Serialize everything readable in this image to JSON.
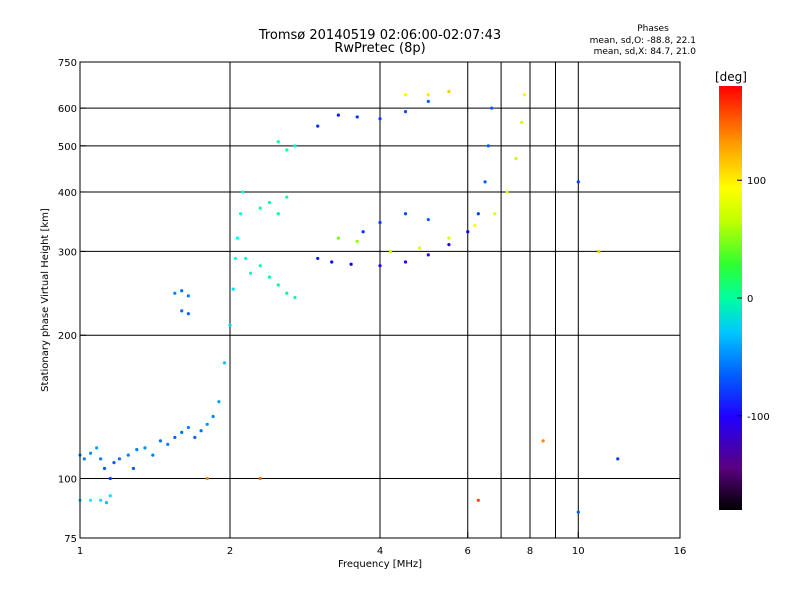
{
  "header": {
    "title_line1": "Tromsø 20140519 02:06:00-02:07:43",
    "title_line2": "RwPretec (8p)"
  },
  "stats": {
    "heading": "Phases",
    "line_o": "mean, sd,O: -88.8, 22.1",
    "line_x": "mean, sd,X: 84.7, 21.0"
  },
  "colorbar": {
    "title": "[deg]",
    "ticks": [
      100,
      0,
      -100
    ],
    "range": [
      -180,
      180
    ]
  },
  "chart_data": {
    "type": "scatter",
    "title": "Tromsø 20140519 02:06:00-02:07:43",
    "subtitle": "RwPretec (8p)",
    "xlabel": "Frequency [MHz]",
    "ylabel": "Stationary phase Virtual Height [km]",
    "xscale": "log",
    "yscale": "log",
    "xlim": [
      1,
      16
    ],
    "ylim": [
      75,
      750
    ],
    "xticks": [
      1,
      2,
      4,
      6,
      8,
      10,
      16
    ],
    "xtick_labels": [
      "1",
      "2",
      "4",
      "6",
      "8",
      "10",
      "16"
    ],
    "yticks": [
      75,
      100,
      200,
      300,
      400,
      500,
      600,
      750
    ],
    "ytick_labels": [
      "75",
      "100",
      "200",
      "300",
      "400",
      "500",
      "600",
      "750"
    ],
    "grid_x": [
      2,
      4,
      6,
      7,
      8,
      9,
      10
    ],
    "grid_y": [
      100,
      200,
      300,
      400,
      500,
      600
    ],
    "color_scale": "phase in degrees, rainbow from -180 (black/purple) to +180 (red)",
    "series": [
      {
        "points": [
          {
            "x": 1.0,
            "y": 90,
            "c": -60
          },
          {
            "x": 1.05,
            "y": 90,
            "c": -55
          },
          {
            "x": 1.1,
            "y": 90,
            "c": -60
          },
          {
            "x": 1.13,
            "y": 89,
            "c": -70
          },
          {
            "x": 1.15,
            "y": 92,
            "c": -60
          },
          {
            "x": 1.0,
            "y": 112,
            "c": -85
          },
          {
            "x": 1.02,
            "y": 110,
            "c": -90
          },
          {
            "x": 1.05,
            "y": 113,
            "c": -85
          },
          {
            "x": 1.08,
            "y": 116,
            "c": -80
          },
          {
            "x": 1.1,
            "y": 110,
            "c": -90
          },
          {
            "x": 1.12,
            "y": 105,
            "c": -100
          },
          {
            "x": 1.15,
            "y": 100,
            "c": -110
          },
          {
            "x": 1.17,
            "y": 108,
            "c": -100
          },
          {
            "x": 1.2,
            "y": 110,
            "c": -95
          },
          {
            "x": 1.25,
            "y": 112,
            "c": -90
          },
          {
            "x": 1.28,
            "y": 105,
            "c": -100
          },
          {
            "x": 1.3,
            "y": 115,
            "c": -90
          },
          {
            "x": 1.35,
            "y": 116,
            "c": -85
          },
          {
            "x": 1.4,
            "y": 112,
            "c": -90
          },
          {
            "x": 1.45,
            "y": 120,
            "c": -95
          },
          {
            "x": 1.5,
            "y": 118,
            "c": -90
          },
          {
            "x": 1.55,
            "y": 122,
            "c": -100
          },
          {
            "x": 1.6,
            "y": 125,
            "c": -95
          },
          {
            "x": 1.65,
            "y": 128,
            "c": -90
          },
          {
            "x": 1.7,
            "y": 122,
            "c": -100
          },
          {
            "x": 1.75,
            "y": 126,
            "c": -95
          },
          {
            "x": 1.8,
            "y": 130,
            "c": -85
          },
          {
            "x": 1.85,
            "y": 135,
            "c": -90
          },
          {
            "x": 1.9,
            "y": 145,
            "c": -80
          },
          {
            "x": 1.95,
            "y": 175,
            "c": -70
          },
          {
            "x": 2.0,
            "y": 210,
            "c": -65
          },
          {
            "x": 2.03,
            "y": 250,
            "c": -60
          },
          {
            "x": 2.05,
            "y": 290,
            "c": -50
          },
          {
            "x": 2.07,
            "y": 320,
            "c": -45
          },
          {
            "x": 2.1,
            "y": 360,
            "c": -40
          },
          {
            "x": 2.12,
            "y": 400,
            "c": -35
          },
          {
            "x": 2.15,
            "y": 290,
            "c": -40
          },
          {
            "x": 2.2,
            "y": 270,
            "c": -35
          },
          {
            "x": 2.3,
            "y": 280,
            "c": -30
          },
          {
            "x": 2.4,
            "y": 265,
            "c": -25
          },
          {
            "x": 2.5,
            "y": 255,
            "c": -20
          },
          {
            "x": 2.6,
            "y": 245,
            "c": -20
          },
          {
            "x": 2.7,
            "y": 240,
            "c": -25
          },
          {
            "x": 2.3,
            "y": 370,
            "c": -20
          },
          {
            "x": 2.4,
            "y": 380,
            "c": -25
          },
          {
            "x": 2.5,
            "y": 360,
            "c": -20
          },
          {
            "x": 2.6,
            "y": 390,
            "c": -30
          },
          {
            "x": 2.5,
            "y": 510,
            "c": -25
          },
          {
            "x": 2.6,
            "y": 490,
            "c": -30
          },
          {
            "x": 2.7,
            "y": 500,
            "c": -35
          },
          {
            "x": 1.55,
            "y": 245,
            "c": -90
          },
          {
            "x": 1.6,
            "y": 248,
            "c": -95
          },
          {
            "x": 1.65,
            "y": 242,
            "c": -90
          },
          {
            "x": 1.6,
            "y": 225,
            "c": -95
          },
          {
            "x": 1.65,
            "y": 222,
            "c": -100
          },
          {
            "x": 3.0,
            "y": 290,
            "c": -120
          },
          {
            "x": 3.2,
            "y": 285,
            "c": -125
          },
          {
            "x": 3.5,
            "y": 282,
            "c": -130
          },
          {
            "x": 4.0,
            "y": 280,
            "c": -135
          },
          {
            "x": 4.5,
            "y": 285,
            "c": -140
          },
          {
            "x": 5.0,
            "y": 295,
            "c": -140
          },
          {
            "x": 5.5,
            "y": 310,
            "c": -140
          },
          {
            "x": 6.0,
            "y": 330,
            "c": -130
          },
          {
            "x": 6.3,
            "y": 360,
            "c": -110
          },
          {
            "x": 6.5,
            "y": 420,
            "c": -100
          },
          {
            "x": 6.6,
            "y": 500,
            "c": -100
          },
          {
            "x": 6.7,
            "y": 600,
            "c": -100
          },
          {
            "x": 3.3,
            "y": 320,
            "c": 60
          },
          {
            "x": 3.6,
            "y": 315,
            "c": 70
          },
          {
            "x": 4.2,
            "y": 300,
            "c": 80
          },
          {
            "x": 4.8,
            "y": 305,
            "c": 90
          },
          {
            "x": 5.5,
            "y": 320,
            "c": 90
          },
          {
            "x": 6.2,
            "y": 340,
            "c": 100
          },
          {
            "x": 6.8,
            "y": 360,
            "c": 95
          },
          {
            "x": 7.2,
            "y": 400,
            "c": 90
          },
          {
            "x": 7.5,
            "y": 470,
            "c": 85
          },
          {
            "x": 7.7,
            "y": 560,
            "c": 90
          },
          {
            "x": 7.8,
            "y": 640,
            "c": 100
          },
          {
            "x": 3.0,
            "y": 550,
            "c": -115
          },
          {
            "x": 3.3,
            "y": 580,
            "c": -120
          },
          {
            "x": 3.6,
            "y": 575,
            "c": -115
          },
          {
            "x": 4.0,
            "y": 570,
            "c": -110
          },
          {
            "x": 4.5,
            "y": 590,
            "c": -105
          },
          {
            "x": 5.0,
            "y": 620,
            "c": -100
          },
          {
            "x": 4.5,
            "y": 640,
            "c": 100
          },
          {
            "x": 5.0,
            "y": 640,
            "c": 110
          },
          {
            "x": 5.5,
            "y": 650,
            "c": 120
          },
          {
            "x": 3.7,
            "y": 330,
            "c": -115
          },
          {
            "x": 4.0,
            "y": 345,
            "c": -110
          },
          {
            "x": 4.5,
            "y": 360,
            "c": -105
          },
          {
            "x": 5.0,
            "y": 350,
            "c": -100
          },
          {
            "x": 1.8,
            "y": 100,
            "c": 140
          },
          {
            "x": 2.3,
            "y": 100,
            "c": 150
          },
          {
            "x": 6.3,
            "y": 90,
            "c": 160
          },
          {
            "x": 8.5,
            "y": 120,
            "c": 140
          },
          {
            "x": 10.0,
            "y": 85,
            "c": -100
          },
          {
            "x": 12.0,
            "y": 110,
            "c": -110
          },
          {
            "x": 10.0,
            "y": 420,
            "c": -110
          },
          {
            "x": 11.0,
            "y": 300,
            "c": 120
          }
        ]
      }
    ]
  }
}
